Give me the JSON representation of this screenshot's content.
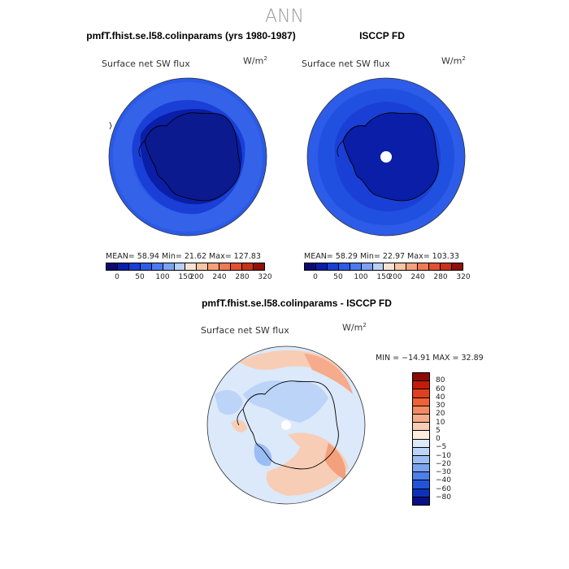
{
  "suptitle": "ANN",
  "panels": [
    {
      "title": "pmfT.fhist.se.l58.colinparams (yrs 1980-1987)",
      "field": "Surface net SW flux",
      "units_base": "W/m",
      "units_exp": "2",
      "stats": "MEAN=   58.94   Min=   21.62   Max=  127.83",
      "colorbar_labels": [
        "0",
        "50",
        "100",
        "150",
        "200",
        "240",
        "280",
        "320"
      ],
      "colorbar_colors": [
        "#0b0b73",
        "#0a1ea8",
        "#1a3fd6",
        "#2c5ce8",
        "#4d7bef",
        "#7da1f3",
        "#b9cff8",
        "#f6e3d6",
        "#f7c4a4",
        "#f3a07c",
        "#ef7a55",
        "#e2502f",
        "#c8321a",
        "#8e1009"
      ]
    },
    {
      "title": "ISCCP FD",
      "field": "Surface net SW flux",
      "units_base": "W/m",
      "units_exp": "2",
      "stats": "MEAN=   58.29   Min=   22.97   Max=  103.33",
      "colorbar_labels": [
        "0",
        "50",
        "100",
        "150",
        "200",
        "240",
        "280",
        "320"
      ],
      "colorbar_colors": [
        "#0b0b73",
        "#0a1ea8",
        "#1a3fd6",
        "#2c5ce8",
        "#4d7bef",
        "#7da1f3",
        "#b9cff8",
        "#f6e3d6",
        "#f7c4a4",
        "#f3a07c",
        "#ef7a55",
        "#e2502f",
        "#c8321a",
        "#8e1009"
      ]
    }
  ],
  "diff": {
    "title": "pmfT.fhist.se.l58.colinparams - ISCCP FD",
    "field": "Surface net SW flux",
    "units_base": "W/m",
    "units_exp": "2",
    "stats": "MIN = −14.91 MAX =   32.89",
    "colorbar_labels": [
      "80",
      "60",
      "40",
      "30",
      "20",
      "10",
      "5",
      "0",
      "−5",
      "−10",
      "−20",
      "−30",
      "−40",
      "−60",
      "−80"
    ],
    "colorbar_colors": [
      "#8b0a05",
      "#c41c0b",
      "#e0401e",
      "#ef6237",
      "#f38a63",
      "#f5ab8c",
      "#f7cdb6",
      "#fbecdf",
      "#dbe9fb",
      "#bcd4f8",
      "#9bbdf5",
      "#7ba3f0",
      "#4d7ee9",
      "#2254d9",
      "#0d32b8",
      "#0a0f85"
    ]
  }
}
